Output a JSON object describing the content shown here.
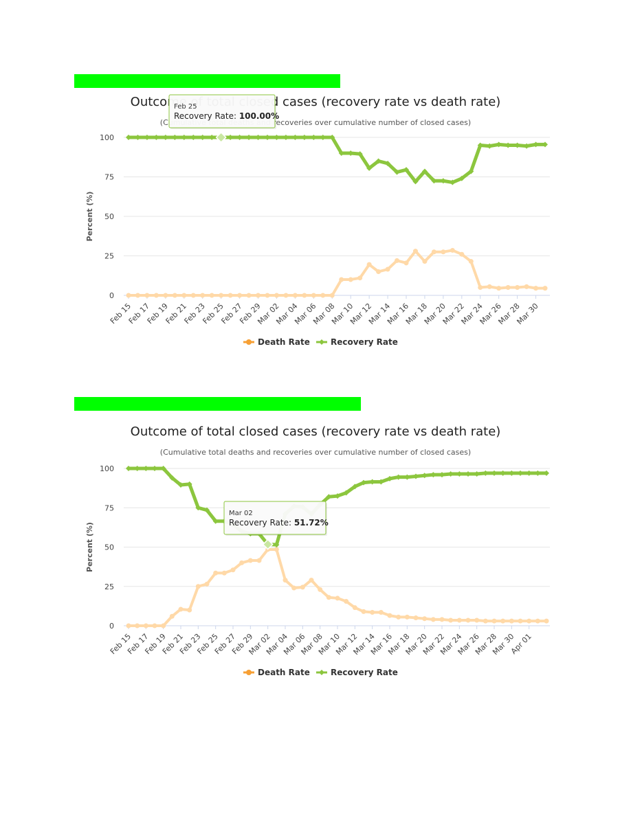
{
  "chart_data": [
    {
      "type": "line",
      "title": "Outcome of total closed cases (recovery rate vs death rate)",
      "subtitle": "(Cumulative total deaths and recoveries over cumulative number of closed cases)",
      "ylabel": "Percent (%)",
      "xlabel": "",
      "ylim": [
        0,
        100
      ],
      "yticks": [
        0,
        25,
        50,
        75,
        100
      ],
      "tick_labels": [
        "Feb 15",
        "Feb 17",
        "Feb 19",
        "Feb 21",
        "Feb 23",
        "Feb 25",
        "Feb 27",
        "Feb 29",
        "Mar 02",
        "Mar 04",
        "Mar 06",
        "Mar 08",
        "Mar 10",
        "Mar 12",
        "Mar 14",
        "Mar 16",
        "Mar 18",
        "Mar 20",
        "Mar 22",
        "Mar 24",
        "Mar 26",
        "Mar 28",
        "Mar 30"
      ],
      "legend": [
        "Death Rate",
        "Recovery Rate"
      ],
      "series": [
        {
          "name": "Death Rate",
          "color": "#ffd9a8",
          "values": [
            0,
            0,
            0,
            0,
            0,
            0,
            0,
            0,
            0,
            0,
            0,
            0,
            0,
            0,
            0,
            0,
            0,
            0,
            0,
            0,
            0,
            0,
            0,
            10,
            10,
            11,
            19.5,
            15,
            16.5,
            22,
            20.5,
            28,
            21.5,
            27.5,
            27.5,
            28.5,
            26,
            21.5,
            5,
            5.5,
            4.5,
            5,
            5,
            5.5,
            4.5,
            4.5
          ]
        },
        {
          "name": "Recovery Rate",
          "color": "#8cc63e",
          "values": [
            100,
            100,
            100,
            100,
            100,
            100,
            100,
            100,
            100,
            100,
            100,
            100,
            100,
            100,
            100,
            100,
            100,
            100,
            100,
            100,
            100,
            100,
            100,
            90,
            90,
            89.5,
            80.5,
            85,
            83.5,
            78,
            79.5,
            72,
            78.5,
            72.5,
            72.5,
            71.5,
            74,
            78.5,
            95,
            94.5,
            95.5,
            95,
            95,
            94.5,
            95.5,
            95.5
          ]
        }
      ],
      "tooltip": {
        "date": "Feb 25",
        "label": "Recovery Rate: ",
        "value": "100.00%",
        "index": 10
      }
    },
    {
      "type": "line",
      "title": "Outcome of total closed cases (recovery rate vs death rate)",
      "subtitle": "(Cumulative total deaths and recoveries over cumulative number of closed cases)",
      "ylabel": "Percent (%)",
      "xlabel": "",
      "ylim": [
        0,
        100
      ],
      "yticks": [
        0,
        25,
        50,
        75,
        100
      ],
      "tick_labels": [
        "Feb 15",
        "Feb 17",
        "Feb 19",
        "Feb 21",
        "Feb 23",
        "Feb 25",
        "Feb 27",
        "Feb 29",
        "Mar 02",
        "Mar 04",
        "Mar 06",
        "Mar 08",
        "Mar 10",
        "Mar 12",
        "Mar 14",
        "Mar 16",
        "Mar 18",
        "Mar 20",
        "Mar 22",
        "Mar 24",
        "Mar 26",
        "Mar 28",
        "Mar 30",
        "Apr 01"
      ],
      "legend": [
        "Death Rate",
        "Recovery Rate"
      ],
      "series": [
        {
          "name": "Death Rate",
          "color": "#ffd9a8",
          "values": [
            0,
            0,
            0,
            0,
            0,
            6,
            10.5,
            10,
            25,
            26.5,
            33.5,
            33.5,
            35.5,
            40,
            41.5,
            41.5,
            48.5,
            48.5,
            29,
            24,
            24.5,
            29,
            23,
            18,
            17.5,
            15.5,
            11.5,
            9,
            8.5,
            8.5,
            6.5,
            5.5,
            5.5,
            5,
            4.5,
            4,
            4,
            3.5,
            3.5,
            3.5,
            3.5,
            3,
            3,
            3,
            3,
            3,
            3,
            3,
            3
          ]
        },
        {
          "name": "Recovery Rate",
          "color": "#8cc63e",
          "values": [
            100,
            100,
            100,
            100,
            100,
            94,
            89.5,
            90,
            75,
            73.5,
            66.5,
            66.5,
            64.5,
            60,
            58.5,
            58.5,
            51.72,
            51.5,
            71,
            76,
            75.5,
            71,
            77,
            82,
            82.5,
            84.5,
            88.5,
            91,
            91.5,
            91.5,
            93.5,
            94.5,
            94.5,
            95,
            95.5,
            96,
            96,
            96.5,
            96.5,
            96.5,
            96.5,
            97,
            97,
            97,
            97,
            97,
            97,
            97,
            97
          ]
        }
      ],
      "tooltip": {
        "date": "Mar 02",
        "label": "Recovery Rate: ",
        "value": "51.72%",
        "index": 16
      }
    }
  ]
}
